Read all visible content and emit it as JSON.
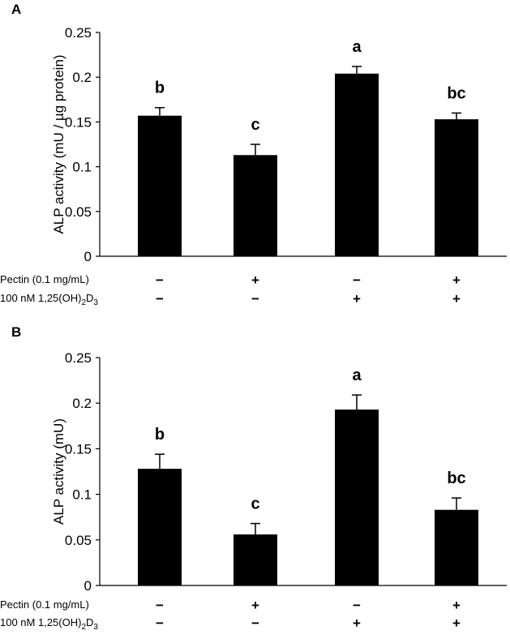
{
  "chart_data": [
    {
      "panel_label": "A",
      "type": "bar",
      "ylabel": "ALP activity (mU / µg protein)",
      "ylim": [
        0,
        0.25
      ],
      "yticks": [
        "0",
        "0.05",
        "0.1",
        "0.15",
        "0.2",
        "0.25"
      ],
      "values": [
        0.157,
        0.113,
        0.204,
        0.153
      ],
      "errors": [
        0.009,
        0.012,
        0.008,
        0.007
      ],
      "significance": [
        "b",
        "c",
        "a",
        "bc"
      ],
      "conditions": [
        {
          "label_main": "Pectin (0.1 mg/mL)",
          "label_parts": [],
          "signs": [
            "−",
            "+",
            "−",
            "+"
          ]
        },
        {
          "label_main": "100 nM 1,25(OH)",
          "label_parts": [
            "2",
            "D",
            "3"
          ],
          "signs": [
            "−",
            "−",
            "+",
            "+"
          ]
        }
      ]
    },
    {
      "panel_label": "B",
      "type": "bar",
      "ylabel": "ALP activity (mU)",
      "ylim": [
        0,
        0.25
      ],
      "yticks": [
        "0",
        "0.05",
        "0.1",
        "0.15",
        "0.2",
        "0.25"
      ],
      "values": [
        0.128,
        0.056,
        0.193,
        0.083
      ],
      "errors": [
        0.016,
        0.012,
        0.016,
        0.013
      ],
      "significance": [
        "b",
        "c",
        "a",
        "bc"
      ],
      "conditions": [
        {
          "label_main": "Pectin (0.1 mg/mL)",
          "label_parts": [],
          "signs": [
            "−",
            "+",
            "−",
            "+"
          ]
        },
        {
          "label_main": "100 nM 1,25(OH)",
          "label_parts": [
            "2",
            "D",
            "3"
          ],
          "signs": [
            "−",
            "−",
            "+",
            "+"
          ]
        }
      ]
    }
  ]
}
